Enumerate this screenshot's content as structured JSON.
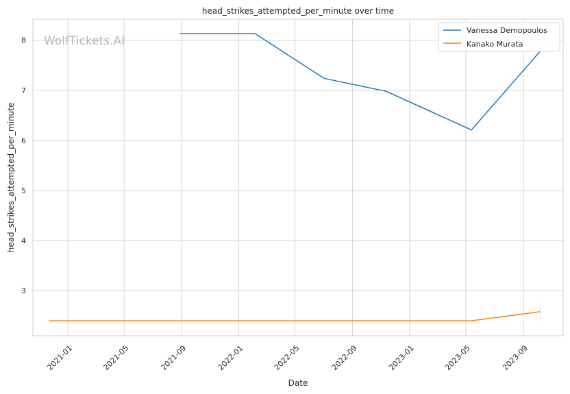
{
  "watermark": "WolfTickets.AI",
  "chart_data": {
    "type": "line",
    "title": "head_strikes_attempted_per_minute over time",
    "xlabel": "Date",
    "ylabel": "head_strikes_attempted_per_minute",
    "x_axis_type": "date",
    "xlim": [
      "2020-10-18",
      "2023-11-25"
    ],
    "ylim": [
      2.1,
      8.42
    ],
    "x_ticks": [
      "2021-01",
      "2021-05",
      "2021-09",
      "2022-01",
      "2022-05",
      "2022-09",
      "2023-01",
      "2023-05",
      "2023-09"
    ],
    "y_ticks": [
      3,
      4,
      5,
      6,
      7,
      8
    ],
    "grid": true,
    "legend_position": "top-right",
    "series": [
      {
        "name": "Vanessa Demopoulos",
        "color": "#1f77b4",
        "points": [
          {
            "x": "2021-08-28",
            "y": 8.13
          },
          {
            "x": "2022-02-05",
            "y": 8.13
          },
          {
            "x": "2022-07-02",
            "y": 7.24
          },
          {
            "x": "2022-11-12",
            "y": 6.98
          },
          {
            "x": "2023-05-13",
            "y": 6.21
          },
          {
            "x": "2023-10-07",
            "y": 7.78
          }
        ]
      },
      {
        "name": "Kanako Murata",
        "color": "#ff7f0e",
        "points": [
          {
            "x": "2020-11-21",
            "y": 2.4
          },
          {
            "x": "2023-05-13",
            "y": 2.4
          },
          {
            "x": "2023-10-07",
            "y": 2.58
          }
        ]
      }
    ]
  }
}
